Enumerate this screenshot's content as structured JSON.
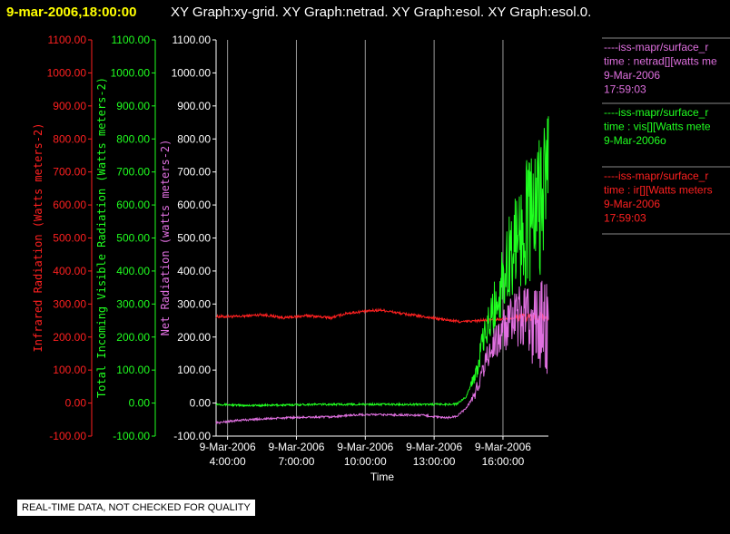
{
  "header": {
    "timestamp": "9-mar-2006,18:00:00",
    "graphs": "XY Graph:xy-grid.  XY Graph:netrad.  XY Graph:esol.  XY Graph:esol.0."
  },
  "notice": "REAL-TIME DATA, NOT CHECKED FOR QUALITY",
  "colors": {
    "background": "#000000",
    "infrared": "#ff2020",
    "visible": "#20ff20",
    "net": "#e070e0",
    "axis_white": "#ffffff",
    "grid": "#9a9a9a",
    "header_yellow": "#ffff00"
  },
  "legend": [
    {
      "line1": "----iss-mapr/surface_r",
      "line2": "time : netrad[][watts me",
      "line3": "9-Mar-2006",
      "line4": "17:59:03",
      "color": "#e070e0"
    },
    {
      "line1": "----iss-mapr/surface_r",
      "line2": "time : vis[][Watts mete",
      "line3": "9-Mar-2006o",
      "line4": "",
      "color": "#20ff20"
    },
    {
      "line1": "----iss-mapr/surface_r",
      "line2": "time : ir[][Watts meters",
      "line3": "9-Mar-2006",
      "line4": "17:59:03",
      "color": "#ff2020"
    }
  ],
  "chart_data": {
    "type": "line",
    "xlabel": "Time",
    "x_ticks": [
      {
        "date": "9-Mar-2006",
        "time": "4:00:00"
      },
      {
        "date": "9-Mar-2006",
        "time": "7:00:00"
      },
      {
        "date": "9-Mar-2006",
        "time": "10:00:00"
      },
      {
        "date": "9-Mar-2006",
        "time": "13:00:00"
      },
      {
        "date": "9-Mar-2006",
        "time": "16:00:00"
      }
    ],
    "xlim_hours": [
      3.5,
      17.98
    ],
    "grid": "vertical lines at x ticks",
    "axes": [
      {
        "label": "Infrared Radiation (Watts meters-2)",
        "color": "#ff2020",
        "ylim": [
          -100,
          1100
        ],
        "ticks": [
          "-100.00",
          "0.00",
          "100.00",
          "200.00",
          "300.00",
          "400.00",
          "500.00",
          "600.00",
          "700.00",
          "800.00",
          "900.00",
          "1000.00",
          "1100.00"
        ]
      },
      {
        "label": "Total Incoming Visible Radiation (Watts meters-2)",
        "color": "#20ff20",
        "ylim": [
          -100,
          1100
        ],
        "ticks": [
          "-100.00",
          "0.00",
          "100.00",
          "200.00",
          "300.00",
          "400.00",
          "500.00",
          "600.00",
          "700.00",
          "800.00",
          "900.00",
          "1000.00",
          "1100.00"
        ]
      },
      {
        "label": "Net Radiation (watts meters-2)",
        "color": "#e070e0",
        "ylim": [
          -100,
          1100
        ],
        "ticks": [
          "-100.00",
          "0.00",
          "100.00",
          "200.00",
          "300.00",
          "400.00",
          "500.00",
          "600.00",
          "700.00",
          "800.00",
          "900.00",
          "1000.00",
          "1100.00"
        ]
      }
    ],
    "series": [
      {
        "name": "ir",
        "color": "#ff2020",
        "x": [
          3.5,
          4.5,
          5.5,
          6.5,
          7.5,
          8.5,
          9.2,
          10.0,
          10.7,
          11.5,
          12.5,
          13.5,
          14.2,
          15.0,
          15.5,
          16.0,
          16.5,
          17.0,
          17.5,
          17.98
        ],
        "y": [
          262,
          262,
          268,
          258,
          265,
          258,
          272,
          278,
          282,
          272,
          262,
          252,
          246,
          250,
          252,
          255,
          258,
          260,
          262,
          262
        ]
      },
      {
        "name": "vis",
        "color": "#20ff20",
        "x": [
          3.5,
          4.5,
          5.5,
          6.5,
          7.5,
          8.5,
          9.5,
          10.5,
          11.5,
          12.5,
          13.5,
          14.0,
          14.4,
          14.8,
          15.2,
          15.6,
          16.0,
          16.4,
          16.8,
          17.2,
          17.5,
          17.8,
          17.98
        ],
        "y": [
          -3,
          -7,
          -7,
          -6,
          -4,
          -4,
          -4,
          -4,
          -4,
          -4,
          -4,
          -3,
          20,
          90,
          200,
          280,
          380,
          470,
          530,
          560,
          600,
          650,
          700
        ]
      },
      {
        "name": "netrad",
        "color": "#e070e0",
        "x": [
          3.5,
          4.5,
          5.5,
          6.5,
          7.5,
          8.5,
          9.5,
          10.5,
          11.5,
          12.5,
          13.5,
          14.0,
          14.4,
          14.8,
          15.2,
          15.6,
          16.0,
          16.4,
          16.8,
          17.2,
          17.5,
          17.8,
          17.98
        ],
        "y": [
          -60,
          -52,
          -48,
          -45,
          -43,
          -42,
          -36,
          -35,
          -36,
          -37,
          -45,
          -40,
          -15,
          30,
          120,
          180,
          215,
          240,
          255,
          240,
          235,
          245,
          240
        ]
      }
    ]
  }
}
